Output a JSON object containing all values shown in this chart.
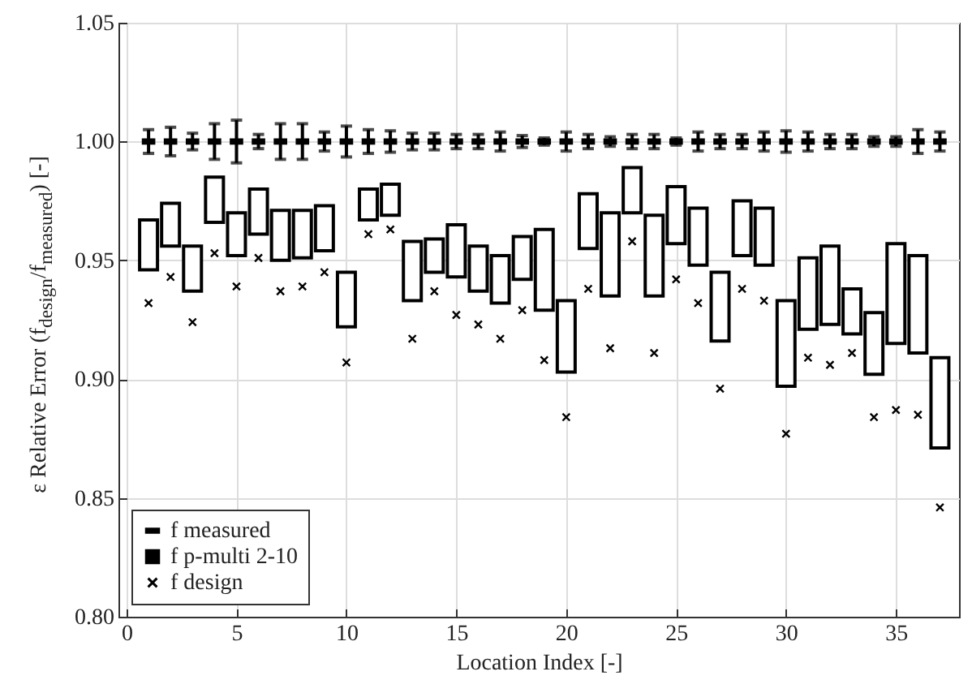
{
  "chart_data": {
    "type": "scatter",
    "xlabel": "Location Index [-]",
    "ylabel": "ε Relative Error (f$_{design}$/f$_{measured}$) [-]",
    "x": [
      1,
      2,
      3,
      4,
      5,
      6,
      7,
      8,
      9,
      10,
      11,
      12,
      13,
      14,
      15,
      16,
      17,
      18,
      19,
      20,
      21,
      22,
      23,
      24,
      25,
      26,
      27,
      28,
      29,
      30,
      31,
      32,
      33,
      34,
      35,
      36,
      37
    ],
    "xlim": [
      0,
      37.5
    ],
    "xticks": [
      0,
      5,
      10,
      15,
      20,
      25,
      30,
      35
    ],
    "ylim": [
      0.8,
      1.05
    ],
    "yticks": [
      {
        "value": 0.8,
        "label": "0.80"
      },
      0.85,
      {
        "value": 0.9,
        "label": "0.90"
      },
      0.95,
      {
        "value": 1,
        "label": "1.00"
      },
      1.05
    ],
    "grid": true,
    "legend": "bottom left",
    "series": [
      {
        "name": "f measured",
        "type": "scatter",
        "color": "#000000",
        "values": [
          1,
          1,
          1,
          1,
          1,
          1,
          1,
          1,
          1,
          1,
          1,
          1,
          1,
          1,
          1,
          1,
          1,
          1,
          1,
          1,
          1,
          1,
          1,
          1,
          1,
          1,
          1,
          1,
          1,
          1,
          1,
          1,
          1,
          1,
          1,
          1,
          1
        ],
        "errors": [
          0.005,
          0.006,
          0.0035,
          0.0075,
          0.009,
          0.003,
          0.0075,
          0.0075,
          0.004,
          0.0065,
          0.005,
          0.0045,
          0.0035,
          0.0035,
          0.003,
          0.003,
          0.004,
          0.0025,
          0.0015,
          0.004,
          0.003,
          0.002,
          0.003,
          0.003,
          0.0015,
          0.004,
          0.003,
          0.003,
          0.004,
          0.0045,
          0.004,
          0.003,
          0.003,
          0.002,
          0.002,
          0.005,
          0.004
        ]
      },
      {
        "name": "f p-multi 2-10",
        "type": "bar",
        "color": "#000000",
        "base": [
          0.946,
          0.956,
          0.937,
          0.966,
          0.952,
          0.961,
          0.95,
          0.951,
          0.954,
          0.922,
          0.967,
          0.969,
          0.933,
          0.945,
          0.943,
          0.937,
          0.932,
          0.942,
          0.929,
          0.903,
          0.955,
          0.935,
          0.97,
          0.935,
          0.957,
          0.948,
          0.916,
          0.952,
          0.948,
          0.897,
          0.921,
          0.923,
          0.919,
          0.902,
          0.915,
          0.911,
          0.871
        ],
        "values": [
          0.021,
          0.018,
          0.019,
          0.019,
          0.018,
          0.019,
          0.021,
          0.02,
          0.019,
          0.023,
          0.013,
          0.013,
          0.025,
          0.014,
          0.022,
          0.019,
          0.02,
          0.018,
          0.034,
          0.03,
          0.023,
          0.035,
          0.019,
          0.034,
          0.024,
          0.024,
          0.029,
          0.023,
          0.024,
          0.036,
          0.03,
          0.033,
          0.019,
          0.026,
          0.042,
          0.041,
          0.038
        ]
      },
      {
        "name": "f design",
        "marker": "cross",
        "color": "#000000",
        "values": [
          0.932,
          0.943,
          0.924,
          0.953,
          0.939,
          0.951,
          0.937,
          0.939,
          0.945,
          0.907,
          0.961,
          0.963,
          0.917,
          0.937,
          0.927,
          0.923,
          0.917,
          0.929,
          0.908,
          0.884,
          0.938,
          0.913,
          0.958,
          0.911,
          0.942,
          0.932,
          0.896,
          0.938,
          0.933,
          0.877,
          0.909,
          0.906,
          0.911,
          0.884,
          0.887,
          0.885,
          0.846
        ]
      }
    ]
  }
}
